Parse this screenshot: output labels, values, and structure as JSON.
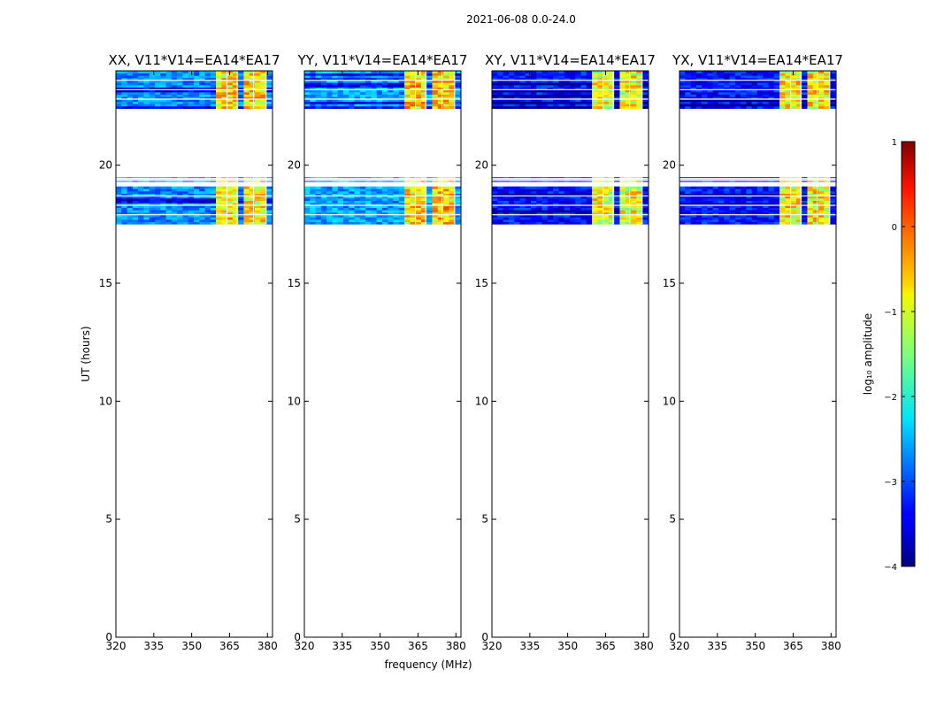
{
  "figure": {
    "suptitle": "2021-06-08 0.0-24.0",
    "ylabel": "UT (hours)",
    "xlabel": "frequency (MHz)"
  },
  "chart_data": {
    "type": "heatmap",
    "xlim": [
      320,
      382
    ],
    "ylim": [
      0,
      24
    ],
    "x_ticks": [
      320,
      335,
      350,
      365,
      380
    ],
    "y_ticks": [
      0,
      5,
      10,
      15,
      20
    ],
    "rfi_bands_mhz": [
      [
        360,
        364
      ],
      [
        364.5,
        368
      ],
      [
        370,
        374.5
      ],
      [
        375,
        379.5
      ]
    ],
    "time_blocks_hours": [
      {
        "start": 22.4,
        "end": 24.0
      },
      {
        "start": 17.5,
        "end": 19.1
      },
      {
        "start": 19.3,
        "end": 19.5
      }
    ],
    "panels": [
      {
        "title": "XX, V11*V14=EA14*EA17",
        "base_log_amp": -2.7,
        "band_log_amp": -0.9
      },
      {
        "title": "YY, V11*V14=EA14*EA17",
        "base_log_amp": -2.6,
        "band_log_amp": -0.8
      },
      {
        "title": "XY, V11*V14=EA14*EA17",
        "base_log_amp": -3.3,
        "band_log_amp": -1.1
      },
      {
        "title": "YX, V11*V14=EA14*EA17",
        "base_log_amp": -3.3,
        "band_log_amp": -1.0
      }
    ],
    "colorbar": {
      "label": "log₁₀ amplitude",
      "range": [
        -4,
        1
      ],
      "ticks": [
        1,
        0,
        -1,
        -2,
        -3,
        -4
      ],
      "tick_labels": [
        "1",
        "0",
        "−1",
        "−2",
        "−3",
        "−4"
      ],
      "colormap": "jet"
    }
  },
  "colors": {
    "axes": "#000000",
    "background": "#ffffff"
  }
}
